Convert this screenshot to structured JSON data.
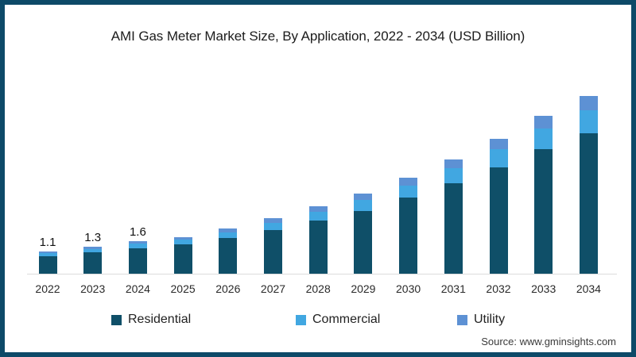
{
  "title": "AMI Gas Meter Market Size, By Application, 2022 - 2034 (USD Billion)",
  "source": "Source: www.gminsights.com",
  "colors": {
    "frame": "#0d4a68",
    "residential": "#0f4f68",
    "commercial": "#41a7e1",
    "utility": "#5d91d4",
    "axis_line": "#dcdcdc"
  },
  "chart_data": {
    "type": "bar",
    "stacked": true,
    "title": "AMI Gas Meter Market Size, By Application, 2022 - 2034 (USD Billion)",
    "xlabel": "",
    "ylabel": "USD Billion",
    "grid": false,
    "y_axis_visible": false,
    "legend_position": "bottom",
    "categories": [
      "2022",
      "2023",
      "2024",
      "2025",
      "2026",
      "2027",
      "2028",
      "2029",
      "2030",
      "2031",
      "2032",
      "2033",
      "2034"
    ],
    "series": [
      {
        "name": "Residential",
        "color_key": "residential",
        "values": [
          0.87,
          1.03,
          1.26,
          1.42,
          1.74,
          2.13,
          2.61,
          3.08,
          3.71,
          4.42,
          5.21,
          6.08,
          6.87
        ]
      },
      {
        "name": "Commercial",
        "color_key": "commercial",
        "values": [
          0.14,
          0.17,
          0.21,
          0.23,
          0.29,
          0.35,
          0.43,
          0.51,
          0.61,
          0.73,
          0.86,
          1.0,
          1.13
        ]
      },
      {
        "name": "Utility",
        "color_key": "utility",
        "values": [
          0.09,
          0.1,
          0.13,
          0.15,
          0.17,
          0.22,
          0.26,
          0.31,
          0.38,
          0.45,
          0.53,
          0.62,
          0.7
        ]
      }
    ],
    "totals": [
      1.1,
      1.3,
      1.6,
      1.8,
      2.2,
      2.7,
      3.3,
      3.9,
      4.7,
      5.6,
      6.6,
      7.7,
      8.7
    ],
    "data_labels": {
      "2022": "1.1",
      "2023": "1.3",
      "2024": "1.6"
    }
  },
  "legend": {
    "items": [
      {
        "label": "Residential",
        "color_key": "residential"
      },
      {
        "label": "Commercial",
        "color_key": "commercial"
      },
      {
        "label": "Utility",
        "color_key": "utility"
      }
    ]
  }
}
